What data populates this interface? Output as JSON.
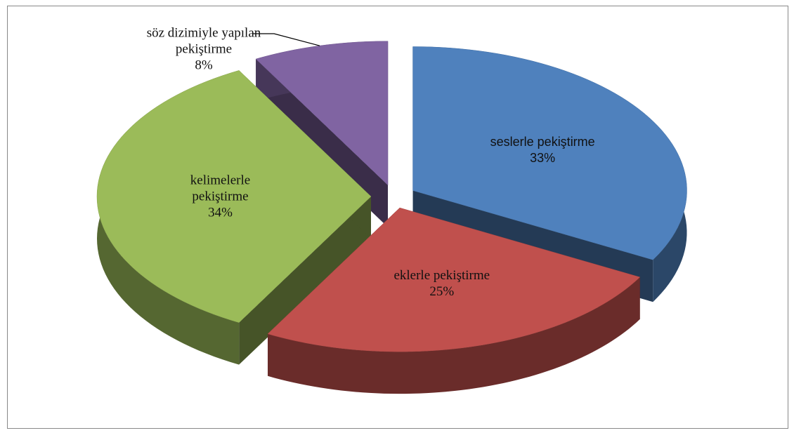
{
  "chart_data": {
    "type": "pie3d",
    "categories": [
      "seslerle pekiştirme",
      "eklerle pekiştirme",
      "kelimelerle pekiştirme",
      "söz dizimiyle yapılan pekiştirme"
    ],
    "values": [
      33,
      25,
      34,
      8
    ],
    "value_labels": [
      "33%",
      "25%",
      "34%",
      "8%"
    ],
    "colors": [
      "#4f81bd",
      "#c0504d",
      "#9bbb59",
      "#8064a2"
    ]
  }
}
